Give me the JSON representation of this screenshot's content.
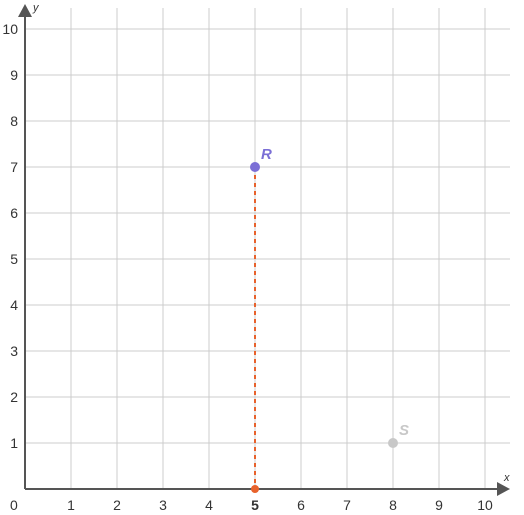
{
  "chart_data": {
    "type": "scatter",
    "xlabel": "x",
    "ylabel": "y",
    "xlim": [
      0,
      10
    ],
    "ylim": [
      0,
      10
    ],
    "grid": true,
    "x_ticks": [
      "1",
      "2",
      "3",
      "4",
      "5",
      "6",
      "7",
      "8",
      "9",
      "10"
    ],
    "y_ticks": [
      "1",
      "2",
      "3",
      "4",
      "5",
      "6",
      "7",
      "8",
      "9",
      "10"
    ],
    "origin_label": "0",
    "highlighted_x_tick": "5",
    "points": [
      {
        "label": "R",
        "x": 5,
        "y": 7,
        "color": "#7b6fd6"
      },
      {
        "label": "S",
        "x": 8,
        "y": 1,
        "color": "#c8c8c8"
      }
    ],
    "projection": {
      "from": "R",
      "to_x": 5,
      "color": "#e8622c",
      "style": "dashed"
    }
  }
}
